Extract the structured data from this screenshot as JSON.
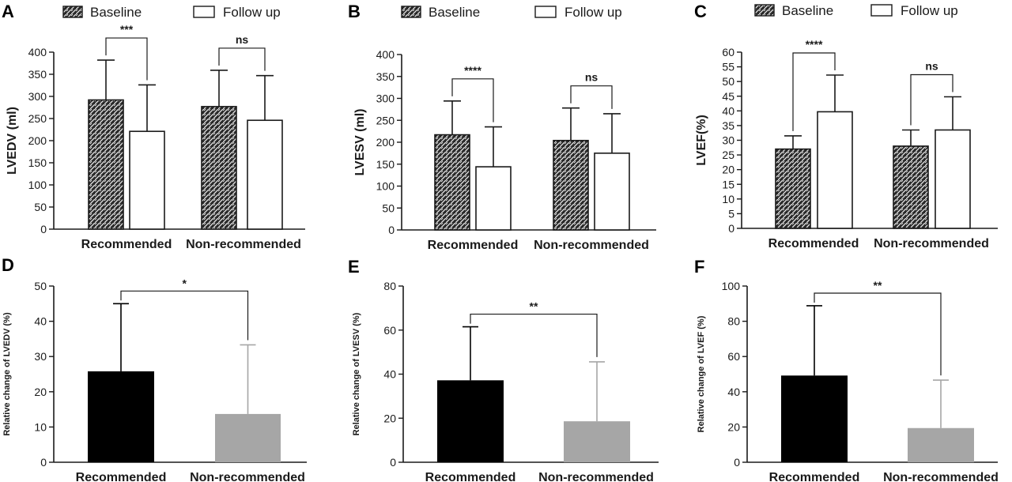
{
  "chart_data": [
    {
      "panel": "A",
      "type": "bar",
      "ylabel": "LVEDV (ml)",
      "ylim": [
        0,
        400
      ],
      "ticks": [
        0,
        50,
        100,
        150,
        200,
        250,
        300,
        350,
        400
      ],
      "categories": [
        "Recommended",
        "Non-recommended"
      ],
      "legend": {
        "placement": "top",
        "entries": [
          "Baseline",
          "Follow up"
        ]
      },
      "series": [
        {
          "name": "Baseline",
          "values": [
            292,
            277
          ],
          "errors": [
            90,
            82
          ]
        },
        {
          "name": "Follow up",
          "values": [
            221,
            246
          ],
          "errors": [
            105,
            101
          ]
        }
      ],
      "significance": [
        {
          "category": "Recommended",
          "label": "***"
        },
        {
          "category": "Non-recommended",
          "label": "ns"
        }
      ]
    },
    {
      "panel": "B",
      "type": "bar",
      "ylabel": "LVESV (ml)",
      "ylim": [
        0,
        400
      ],
      "ticks": [
        0,
        50,
        100,
        150,
        200,
        250,
        300,
        350,
        400
      ],
      "categories": [
        "Recommended",
        "Non-recommended"
      ],
      "legend": {
        "placement": "top",
        "entries": [
          "Baseline",
          "Follow up"
        ]
      },
      "series": [
        {
          "name": "Baseline",
          "values": [
            217,
            204
          ],
          "errors": [
            77,
            74
          ]
        },
        {
          "name": "Follow up",
          "values": [
            144,
            175
          ],
          "errors": [
            91,
            90
          ]
        }
      ],
      "significance": [
        {
          "category": "Recommended",
          "label": "****"
        },
        {
          "category": "Non-recommended",
          "label": "ns"
        }
      ]
    },
    {
      "panel": "C",
      "type": "bar",
      "ylabel": "LVEF(%)",
      "ylim": [
        0,
        60
      ],
      "ticks": [
        0,
        5,
        10,
        15,
        20,
        25,
        30,
        35,
        40,
        45,
        50,
        55,
        60
      ],
      "categories": [
        "Recommended",
        "Non-recommended"
      ],
      "legend": {
        "placement": "top",
        "entries": [
          "Baseline",
          "Follow up"
        ]
      },
      "series": [
        {
          "name": "Baseline",
          "values": [
            27,
            28
          ],
          "errors": [
            4.5,
            5.5
          ]
        },
        {
          "name": "Follow up",
          "values": [
            39.7,
            33.5
          ],
          "errors": [
            12.5,
            11.3
          ]
        }
      ],
      "significance": [
        {
          "category": "Recommended",
          "label": "****"
        },
        {
          "category": "Non-recommended",
          "label": "ns"
        }
      ]
    },
    {
      "panel": "D",
      "type": "bar",
      "ylabel": "Relative change of LVEDV (%)",
      "ylim": [
        0,
        50
      ],
      "ticks": [
        0,
        10,
        20,
        30,
        40,
        50
      ],
      "categories": [
        "Recommended",
        "Non-recommended"
      ],
      "values": [
        25.8,
        13.7
      ],
      "errors": [
        19.2,
        19.6
      ],
      "colors": [
        "#000000",
        "#a6a6a6"
      ],
      "significance": [
        {
          "label": "*"
        }
      ]
    },
    {
      "panel": "E",
      "type": "bar",
      "ylabel": "Relative change of LVESV (%)",
      "ylim": [
        0,
        80
      ],
      "ticks": [
        0,
        20,
        40,
        60,
        80
      ],
      "categories": [
        "Recommended",
        "Non-recommended"
      ],
      "values": [
        37.2,
        18.6
      ],
      "errors": [
        24.3,
        27.0
      ],
      "colors": [
        "#000000",
        "#a6a6a6"
      ],
      "significance": [
        {
          "label": "**"
        }
      ]
    },
    {
      "panel": "F",
      "type": "bar",
      "ylabel": "Relative change of LVEF (%)",
      "ylim": [
        0,
        100
      ],
      "ticks": [
        0,
        20,
        40,
        60,
        80,
        100
      ],
      "categories": [
        "Recommended",
        "Non-recommended"
      ],
      "values": [
        49.2,
        19.4
      ],
      "errors": [
        39.6,
        27.2
      ],
      "colors": [
        "#000000",
        "#a6a6a6"
      ],
      "significance": [
        {
          "label": "**"
        }
      ]
    }
  ]
}
